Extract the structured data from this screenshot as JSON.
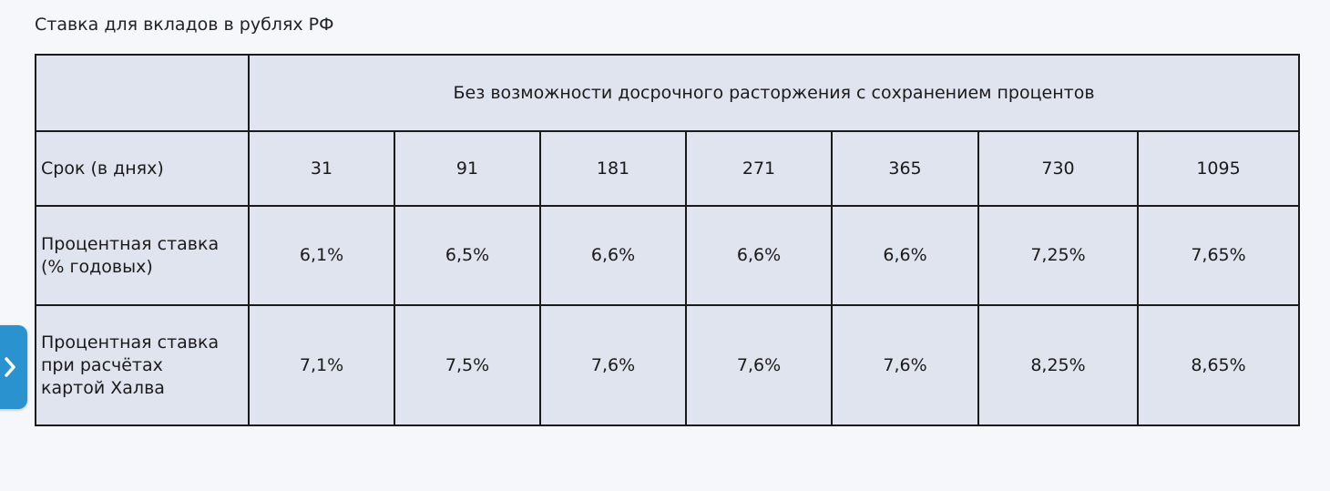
{
  "caption": "Ставка для вкладов в рублях РФ",
  "table": {
    "group_header": "Без возможности досрочного расторжения с сохранением процентов",
    "rows": [
      {
        "label": "Срок (в днях)",
        "values": [
          "31",
          "91",
          "181",
          "271",
          "365",
          "730",
          "1095"
        ]
      },
      {
        "label_lines": [
          "Процентная ставка",
          "(% годовых)"
        ],
        "values": [
          "6,1%",
          "6,5%",
          "6,6%",
          "6,6%",
          "6,6%",
          "7,25%",
          "7,65%"
        ]
      },
      {
        "label_lines": [
          "Процентная ставка",
          "при расчётах",
          "картой Халва"
        ],
        "values": [
          "7,1%",
          "7,5%",
          "7,6%",
          "7,6%",
          "7,6%",
          "8,25%",
          "8,65%"
        ]
      }
    ]
  },
  "side_tab": {
    "icon": "chevron-right-icon",
    "color": "#2a93cf"
  }
}
